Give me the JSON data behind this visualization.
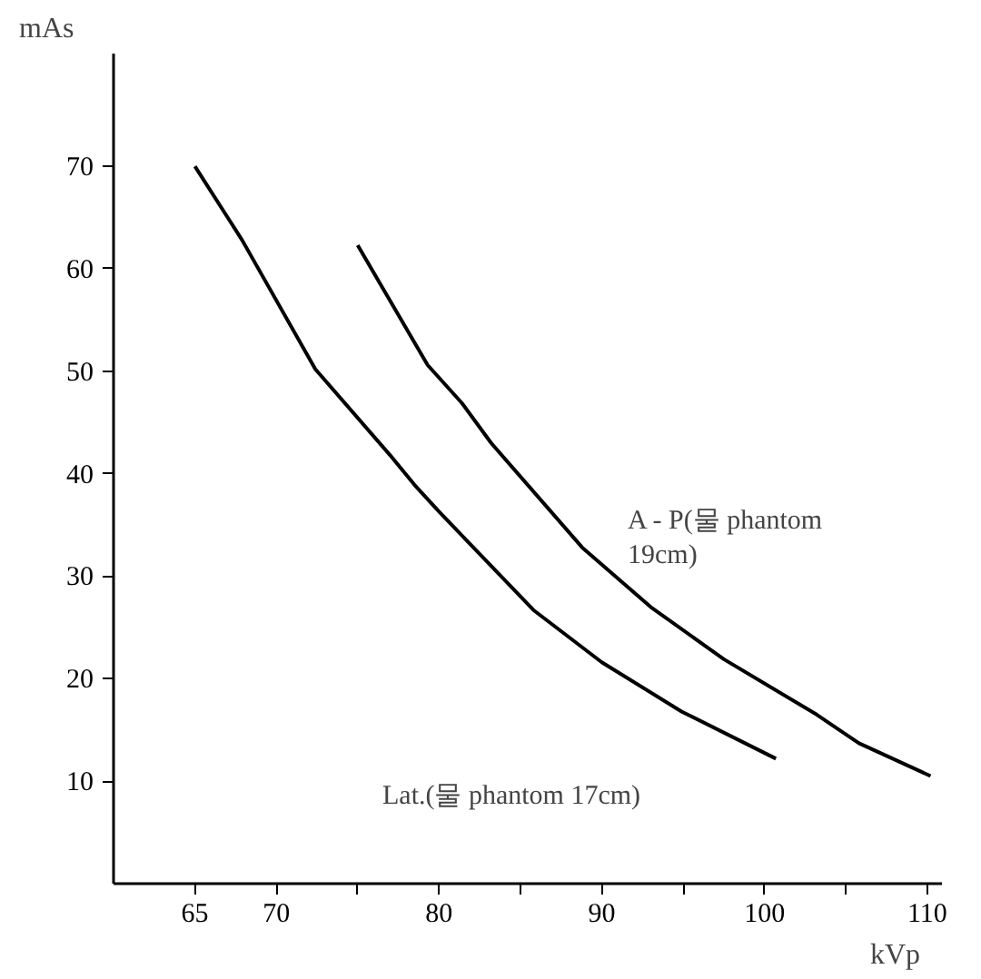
{
  "chart_data": {
    "type": "line",
    "xlabel": "kVp",
    "ylabel": "mAs",
    "xlim": [
      60,
      110.9
    ],
    "ylim": [
      0,
      81
    ],
    "xticks": [
      65,
      70,
      {
        "value": 75,
        "label": null
      },
      80,
      {
        "value": 85,
        "label": null
      },
      90,
      {
        "value": 95,
        "label": null
      },
      100,
      {
        "value": 105,
        "label": null
      },
      110
    ],
    "yticks": [
      10,
      20,
      30,
      40,
      50,
      60,
      70
    ],
    "grid": false,
    "marker": "none",
    "line_style": "solid",
    "series": [
      {
        "color": "#000000",
        "x": [
          65,
          67.9,
          72.4,
          77,
          78.5,
          80,
          83.2,
          85.8,
          90,
          94.9,
          100.7
        ],
        "values": [
          70,
          62.8,
          50.2,
          41.8,
          38.9,
          36.3,
          31,
          26.7,
          21.6,
          16.8,
          12.2
        ]
      },
      {
        "color": "#000000",
        "x": [
          75,
          79.3,
          81.4,
          83.2,
          88.8,
          93,
          97.5,
          103.2,
          105.8,
          110.2
        ],
        "values": [
          62.3,
          50.6,
          46.9,
          43,
          32.8,
          27,
          21.9,
          16.5,
          13.7,
          10.5
        ]
      }
    ],
    "annotations": [
      "A - P(물 phantom\n                  19cm)",
      "Lat.(물 phantom 17cm)"
    ]
  }
}
